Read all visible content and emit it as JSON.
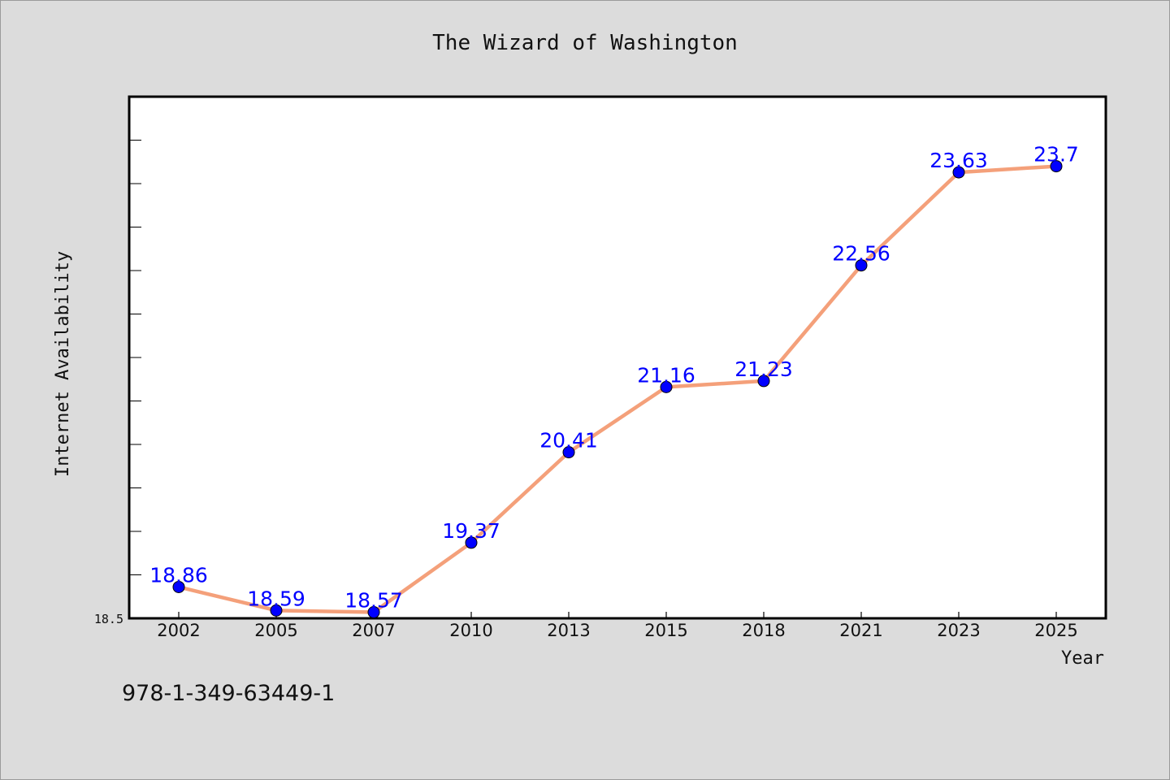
{
  "chart_data": {
    "type": "line",
    "title": "The Wizard of Washington",
    "xlabel": "Year",
    "ylabel": "Internet Availability",
    "categories": [
      "2002",
      "2005",
      "2007",
      "2010",
      "2013",
      "2015",
      "2018",
      "2021",
      "2023",
      "2025"
    ],
    "series": [
      {
        "values": [
          18.86,
          18.59,
          18.57,
          19.37,
          20.41,
          21.16,
          21.23,
          22.56,
          23.63,
          23.7
        ]
      }
    ],
    "data_labels": [
      "18.86",
      "18.59",
      "18.57",
      "19.37",
      "20.41",
      "21.16",
      "21.23",
      "22.56",
      "23.63",
      "23.7"
    ],
    "ylim": [
      18.5,
      24.5
    ],
    "yticks_labeled": [
      "18.5"
    ],
    "grid": false,
    "legend": "none",
    "colors": {
      "line": "#f4a07a",
      "marker": "#0000ff",
      "label": "#0000ff",
      "plot_bg": "#ffffff",
      "page_bg": "#dcdcdc"
    }
  },
  "footer": {
    "isbn": "978-1-349-63449-1"
  }
}
